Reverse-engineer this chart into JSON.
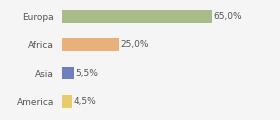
{
  "categories": [
    "Europa",
    "Africa",
    "Asia",
    "America"
  ],
  "values": [
    65.0,
    25.0,
    5.5,
    4.5
  ],
  "bar_colors": [
    "#a8bc8a",
    "#e8b07a",
    "#6f7fbe",
    "#e8cc6a"
  ],
  "labels": [
    "65,0%",
    "25,0%",
    "5,5%",
    "4,5%"
  ],
  "xlim": [
    0,
    80
  ],
  "background_color": "#f5f5f5",
  "text_color": "#555555",
  "label_fontsize": 6.5,
  "tick_fontsize": 6.5,
  "bar_height": 0.45
}
